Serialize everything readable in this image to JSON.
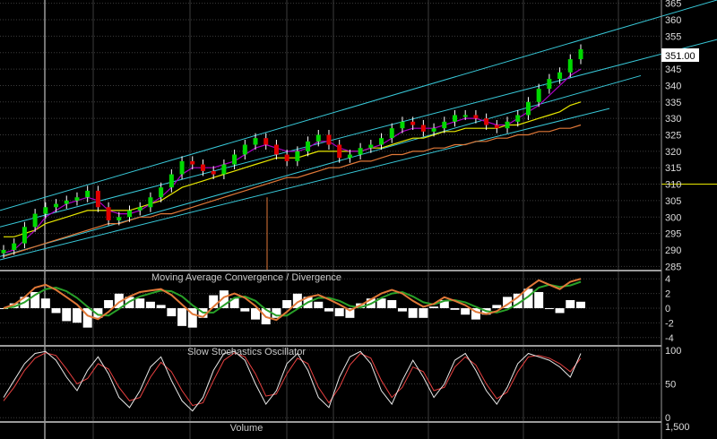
{
  "chart_data": [
    {
      "panel": "price",
      "type": "candlestick",
      "y_ticks": [
        "365",
        "360",
        "355",
        "350",
        "345",
        "340",
        "335",
        "330",
        "325",
        "320",
        "315",
        "310",
        "305",
        "300",
        "295",
        "290",
        "285"
      ],
      "ylim": [
        284,
        366
      ],
      "last_value_label": "351.00",
      "last_value": 351,
      "horizontal_line_value": 310,
      "colors": {
        "up": "#00d800",
        "down": "#e00000",
        "ma_fast": "#b000c8",
        "ma_mid": "#e8e800",
        "ma_slow": "#e07838",
        "channel": "#38c8d8",
        "hline": "#e8e800"
      },
      "close_series_approx": [
        290,
        292,
        297,
        301,
        303,
        304,
        305,
        306,
        308,
        303,
        299,
        300,
        302,
        303,
        306,
        309,
        313,
        317,
        316,
        314,
        313,
        316,
        319,
        322,
        324,
        322,
        319,
        317,
        320,
        323,
        325,
        322,
        318,
        319,
        321,
        322,
        324,
        327,
        329,
        328,
        326,
        327,
        329,
        331,
        331,
        330,
        328,
        327,
        329,
        331,
        335,
        339,
        342,
        344,
        348,
        351
      ],
      "ma_fast_approx": [
        289,
        290,
        293,
        296,
        300,
        302,
        304,
        305,
        306,
        305,
        302,
        301,
        301,
        302,
        304,
        306,
        309,
        313,
        315,
        315,
        315,
        316,
        317,
        319,
        321,
        322,
        321,
        320,
        320,
        321,
        323,
        323,
        321,
        320,
        320,
        321,
        322,
        324,
        326,
        327,
        327,
        327,
        328,
        329,
        330,
        330,
        329,
        328,
        328,
        330,
        332,
        334,
        337,
        340,
        343,
        345
      ],
      "ma_mid_approx": [
        294,
        294,
        295,
        296,
        298,
        299,
        300,
        301,
        302,
        302,
        302,
        302,
        302,
        303,
        304,
        305,
        307,
        309,
        310,
        311,
        312,
        313,
        314,
        315,
        316,
        317,
        318,
        318,
        318,
        319,
        320,
        320,
        320,
        320,
        320,
        321,
        321,
        322,
        323,
        324,
        324,
        325,
        326,
        326,
        327,
        327,
        327,
        327,
        328,
        328,
        329,
        330,
        331,
        332,
        334,
        335
      ],
      "ma_slow_approx": [
        288,
        289,
        290,
        291,
        292,
        293,
        294,
        295,
        296,
        297,
        298,
        298,
        299,
        300,
        300,
        301,
        301,
        302,
        303,
        304,
        305,
        306,
        307,
        308,
        309,
        310,
        311,
        312,
        312,
        313,
        314,
        315,
        315,
        316,
        317,
        317,
        318,
        319,
        319,
        320,
        320,
        321,
        321,
        322,
        322,
        323,
        323,
        324,
        324,
        325,
        325,
        326,
        326,
        327,
        327,
        328
      ],
      "channel_lines": [
        {
          "from": 302,
          "to": 366
        },
        {
          "from": 297,
          "to": 354
        },
        {
          "from": 288,
          "to": 343
        },
        {
          "from": 287,
          "to": 333
        }
      ]
    },
    {
      "panel": "macd",
      "type": "line+histogram",
      "title": "Moving Average Convergence / Divergence",
      "y_ticks": [
        "4",
        "2",
        "0",
        "-2",
        "-4"
      ],
      "ylim": [
        -5,
        5
      ],
      "macd_approx": [
        0,
        0.5,
        1.5,
        2.8,
        3.2,
        2.5,
        1.5,
        0.5,
        -1,
        -1.5,
        -0.5,
        0.8,
        1.6,
        2.2,
        2.4,
        2.6,
        1.8,
        0.5,
        -0.8,
        -1.2,
        0.2,
        1.5,
        2.0,
        1.4,
        0.3,
        -1.2,
        -1.6,
        -0.5,
        0.8,
        1.5,
        1.8,
        1.2,
        0.5,
        -0.3,
        0.4,
        1.2,
        2.0,
        2.5,
        2.0,
        1.0,
        0.2,
        0.6,
        1.5,
        1.0,
        0.4,
        -0.5,
        -0.8,
        -0.4,
        0.5,
        1.5,
        2.8,
        3.8,
        3.2,
        2.6,
        3.6,
        4.0
      ],
      "signal_approx": [
        0,
        0.2,
        0.8,
        1.8,
        2.6,
        2.8,
        2.3,
        1.4,
        0.2,
        -0.9,
        -1.0,
        -0.1,
        0.9,
        1.6,
        2.0,
        2.4,
        2.3,
        1.6,
        0.4,
        -0.6,
        -0.6,
        0.4,
        1.4,
        1.6,
        1.0,
        -0.2,
        -1.0,
        -1.0,
        -0.1,
        0.8,
        1.4,
        1.4,
        1.0,
        0.3,
        0.1,
        0.6,
        1.4,
        2.0,
        2.2,
        1.6,
        0.8,
        0.5,
        1.0,
        1.1,
        0.8,
        0.2,
        -0.4,
        -0.6,
        -0.2,
        0.6,
        1.6,
        2.8,
        3.2,
        2.9,
        3.1,
        3.6
      ],
      "colors": {
        "macd": "#e07838",
        "signal": "#28a028",
        "hist": "#ffffff"
      }
    },
    {
      "panel": "stochastics",
      "type": "line",
      "title": "Slow Stochastics Oscillator",
      "y_ticks": [
        "100",
        "50",
        "0"
      ],
      "ylim": [
        -5,
        105
      ],
      "k_approx": [
        30,
        55,
        80,
        95,
        98,
        85,
        60,
        40,
        70,
        90,
        65,
        30,
        15,
        40,
        75,
        90,
        55,
        25,
        10,
        30,
        70,
        95,
        98,
        85,
        50,
        20,
        40,
        80,
        95,
        70,
        30,
        15,
        60,
        90,
        98,
        80,
        40,
        20,
        55,
        85,
        60,
        30,
        50,
        85,
        95,
        70,
        40,
        20,
        45,
        80,
        95,
        90,
        85,
        75,
        60,
        95
      ],
      "d_approx": [
        25,
        45,
        70,
        88,
        96,
        92,
        72,
        50,
        58,
        80,
        72,
        45,
        25,
        30,
        60,
        82,
        68,
        40,
        18,
        22,
        55,
        85,
        96,
        90,
        65,
        32,
        35,
        65,
        88,
        80,
        45,
        22,
        45,
        78,
        95,
        88,
        55,
        30,
        45,
        75,
        68,
        40,
        45,
        75,
        90,
        78,
        50,
        28,
        38,
        68,
        90,
        92,
        88,
        80,
        68,
        88
      ],
      "colors": {
        "k": "#e8e8e8",
        "d": "#e84040"
      }
    },
    {
      "panel": "volume",
      "type": "bar",
      "title": "Volume",
      "y_ticks": [
        "1,500"
      ]
    }
  ]
}
